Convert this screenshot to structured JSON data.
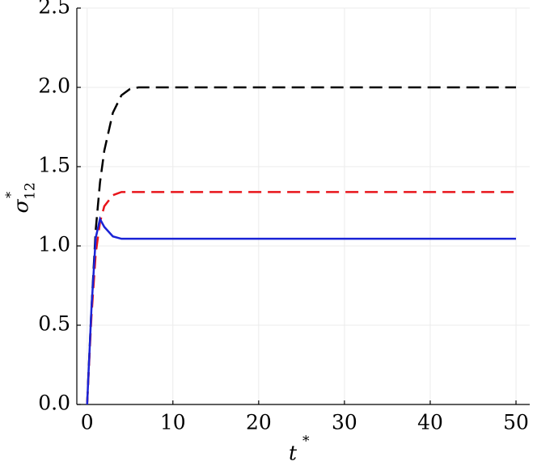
{
  "chart_data": {
    "type": "line",
    "x_label": {
      "base": "t",
      "sup": "*"
    },
    "y_label": {
      "base": "σ",
      "sub": "12",
      "sup": "*"
    },
    "x": [
      0,
      0.5,
      1,
      1.5,
      2,
      3,
      4,
      5,
      6,
      8,
      10,
      20,
      30,
      40,
      50
    ],
    "series": [
      {
        "color": "#000000",
        "dash": true,
        "values": [
          0,
          0.6,
          1.1,
          1.4,
          1.6,
          1.84,
          1.95,
          1.99,
          2.0,
          2.0,
          2.0,
          2.0,
          2.0,
          2.0,
          2.0
        ]
      },
      {
        "color": "#e8141a",
        "dash": true,
        "values": [
          0,
          0.55,
          0.95,
          1.15,
          1.25,
          1.32,
          1.34,
          1.34,
          1.34,
          1.34,
          1.34,
          1.34,
          1.34,
          1.34,
          1.34
        ]
      },
      {
        "color": "#1a23d6",
        "dash": false,
        "values": [
          0,
          0.6,
          1.05,
          1.17,
          1.12,
          1.06,
          1.045,
          1.045,
          1.045,
          1.045,
          1.045,
          1.045,
          1.045,
          1.045,
          1.045
        ]
      }
    ],
    "xlim": [
      -1.2,
      51.6
    ],
    "xticks": [
      0,
      10,
      20,
      30,
      40,
      50
    ],
    "ylim": [
      0,
      2.5
    ],
    "yticks": [
      {
        "value": 0,
        "label": "0.0"
      },
      0.5,
      {
        "value": 1,
        "label": "1.0"
      },
      1.5,
      {
        "value": 2,
        "label": "2.0"
      },
      2.5
    ],
    "grid": true
  }
}
